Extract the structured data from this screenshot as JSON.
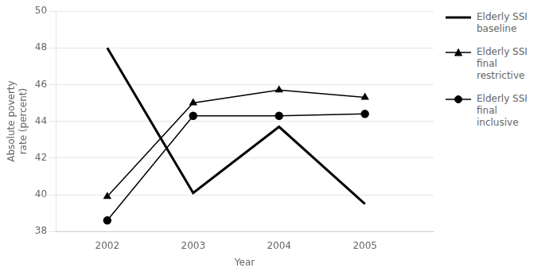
{
  "chart_data": {
    "type": "line",
    "xlabel": "Year",
    "ylabel": [
      "Absolute poverty",
      "rate (percent)"
    ],
    "x": [
      2002,
      2003,
      2004,
      2005
    ],
    "series": [
      {
        "name": "Elderly SSI\nbaseline",
        "color": "#000000",
        "values": [
          48,
          40.1,
          43.7,
          39.5
        ],
        "marker": "none",
        "line_style": "solid"
      },
      {
        "name": "Elderly SSI\nfinal\nrestrictive",
        "color": "#000000",
        "values": [
          39.9,
          45.0,
          45.7,
          45.3
        ],
        "marker": "triangle",
        "line_style": "solid"
      },
      {
        "name": "Elderly SSI\nfinal\ninclusive",
        "color": "#000000",
        "values": [
          38.6,
          44.3,
          44.3,
          44.4
        ],
        "marker": "circle",
        "line_style": "solid"
      }
    ],
    "xlim": [
      2001.4,
      2005.8
    ],
    "xticks": [
      2002,
      2003,
      2004,
      2005
    ],
    "ylim": [
      38,
      50
    ],
    "yticks": [
      38,
      40,
      42,
      44,
      46,
      48,
      50
    ],
    "grid": "y",
    "legend": "right"
  }
}
